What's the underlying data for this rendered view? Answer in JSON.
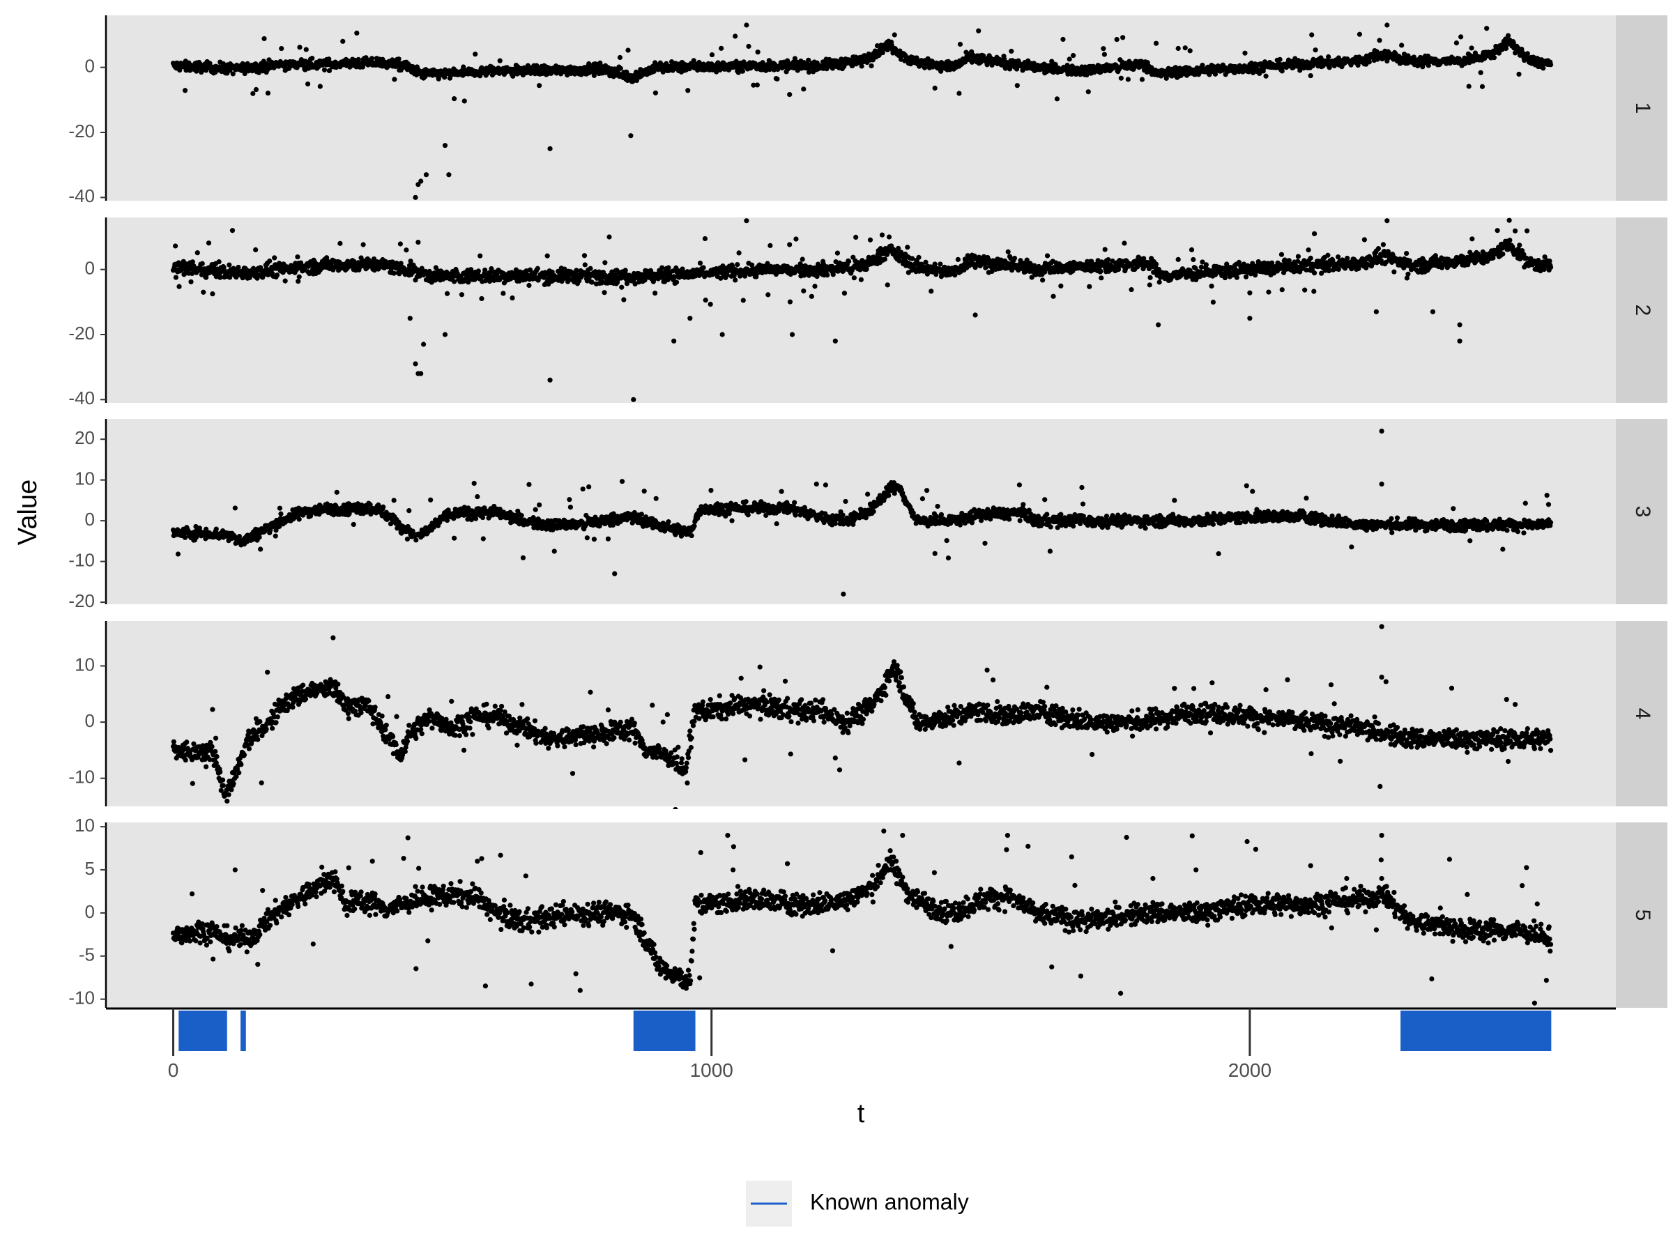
{
  "chart_data": {
    "type": "scatter",
    "facet_strip": "right",
    "x_axis": {
      "title": "t",
      "range": [
        -125,
        2680
      ],
      "ticks": [
        0,
        1000,
        2000
      ],
      "tick_labels": [
        "0",
        "1000",
        "2000"
      ]
    },
    "y_axis_title": "Value",
    "point_color": "#000000",
    "panel_background": "#e5e5e5",
    "strip_background": "#d0d0d0",
    "series_approx_length": 2560,
    "panels": [
      {
        "label": "1",
        "ylim": [
          -41,
          16
        ],
        "yticks": [
          0,
          -20,
          -40
        ],
        "ytick_labels": [
          "0",
          "-20",
          "-40"
        ],
        "noise": 1.1,
        "outlier_rate": 0.02,
        "anchors": [
          [
            0,
            0.5
          ],
          [
            120,
            -0.5
          ],
          [
            200,
            0.8
          ],
          [
            300,
            1.0
          ],
          [
            380,
            1.5
          ],
          [
            430,
            0.5
          ],
          [
            460,
            -2
          ],
          [
            520,
            -2
          ],
          [
            600,
            -1
          ],
          [
            700,
            -1
          ],
          [
            800,
            -0.5
          ],
          [
            850,
            -3
          ],
          [
            900,
            0
          ],
          [
            1000,
            0.2
          ],
          [
            1100,
            0.5
          ],
          [
            1200,
            0.5
          ],
          [
            1280,
            2
          ],
          [
            1330,
            7
          ],
          [
            1370,
            2
          ],
          [
            1450,
            0
          ],
          [
            1480,
            3
          ],
          [
            1520,
            2
          ],
          [
            1600,
            0
          ],
          [
            1700,
            -1
          ],
          [
            1800,
            1
          ],
          [
            1830,
            -2
          ],
          [
            1900,
            -1
          ],
          [
            2000,
            0
          ],
          [
            2100,
            1
          ],
          [
            2200,
            2
          ],
          [
            2250,
            4
          ],
          [
            2300,
            2
          ],
          [
            2400,
            2
          ],
          [
            2450,
            4
          ],
          [
            2480,
            8
          ],
          [
            2520,
            2
          ],
          [
            2560,
            1
          ]
        ],
        "outliers": [
          [
            315,
            8
          ],
          [
            450,
            -40
          ],
          [
            455,
            -36
          ],
          [
            460,
            -35
          ],
          [
            470,
            -33
          ],
          [
            505,
            -24
          ],
          [
            512,
            -33
          ],
          [
            700,
            -25
          ],
          [
            850,
            -21
          ],
          [
            1065,
            13
          ],
          [
            1340,
            10
          ],
          [
            1460,
            -8
          ],
          [
            1880,
            6
          ],
          [
            2115,
            10
          ],
          [
            2255,
            13
          ],
          [
            2440,
            12
          ]
        ]
      },
      {
        "label": "2",
        "ylim": [
          -41,
          16
        ],
        "yticks": [
          0,
          -20,
          -40
        ],
        "ytick_labels": [
          "0",
          "-20",
          "-40"
        ],
        "noise": 1.5,
        "outlier_rate": 0.035,
        "anchors": [
          [
            0,
            0.5
          ],
          [
            120,
            -1
          ],
          [
            200,
            0
          ],
          [
            300,
            1.5
          ],
          [
            380,
            1.5
          ],
          [
            440,
            0
          ],
          [
            480,
            -2
          ],
          [
            550,
            -2
          ],
          [
            650,
            -2
          ],
          [
            750,
            -2
          ],
          [
            850,
            -2
          ],
          [
            900,
            -2
          ],
          [
            1000,
            -1
          ],
          [
            1100,
            0
          ],
          [
            1200,
            0
          ],
          [
            1280,
            1
          ],
          [
            1330,
            6
          ],
          [
            1380,
            1
          ],
          [
            1450,
            -1
          ],
          [
            1480,
            3
          ],
          [
            1520,
            2
          ],
          [
            1600,
            0
          ],
          [
            1700,
            1
          ],
          [
            1820,
            2
          ],
          [
            1830,
            -2
          ],
          [
            1900,
            -1
          ],
          [
            2000,
            0
          ],
          [
            2100,
            1
          ],
          [
            2200,
            2
          ],
          [
            2250,
            4
          ],
          [
            2300,
            1
          ],
          [
            2400,
            3
          ],
          [
            2450,
            4
          ],
          [
            2480,
            8
          ],
          [
            2520,
            2
          ],
          [
            2560,
            1
          ]
        ],
        "outliers": [
          [
            110,
            12
          ],
          [
            310,
            8
          ],
          [
            440,
            -15
          ],
          [
            450,
            -29
          ],
          [
            455,
            -32
          ],
          [
            460,
            -32
          ],
          [
            465,
            -23
          ],
          [
            505,
            -20
          ],
          [
            700,
            -34
          ],
          [
            810,
            10
          ],
          [
            855,
            -40
          ],
          [
            930,
            -22
          ],
          [
            960,
            -15
          ],
          [
            1020,
            -20
          ],
          [
            1065,
            15
          ],
          [
            1150,
            -20
          ],
          [
            1230,
            -22
          ],
          [
            1330,
            10
          ],
          [
            1490,
            -14
          ],
          [
            1830,
            -17
          ],
          [
            2000,
            -15
          ],
          [
            2120,
            11
          ],
          [
            2235,
            -13
          ],
          [
            2255,
            15
          ],
          [
            2340,
            -13
          ],
          [
            2390,
            -22
          ],
          [
            2390,
            -17
          ],
          [
            2460,
            12
          ]
        ]
      },
      {
        "label": "3",
        "ylim": [
          -20.5,
          25
        ],
        "yticks": [
          20,
          10,
          0,
          -10,
          -20
        ],
        "ytick_labels": [
          "20",
          "10",
          "0",
          "-10",
          "-20"
        ],
        "noise": 1.0,
        "outlier_rate": 0.02,
        "anchors": [
          [
            0,
            -3
          ],
          [
            60,
            -3
          ],
          [
            100,
            -3.5
          ],
          [
            130,
            -5
          ],
          [
            160,
            -3
          ],
          [
            200,
            0
          ],
          [
            250,
            2.5
          ],
          [
            300,
            3
          ],
          [
            380,
            3
          ],
          [
            420,
            -1
          ],
          [
            450,
            -4
          ],
          [
            480,
            -2
          ],
          [
            500,
            1
          ],
          [
            540,
            2
          ],
          [
            600,
            2
          ],
          [
            650,
            0
          ],
          [
            700,
            -1
          ],
          [
            750,
            -1
          ],
          [
            800,
            0
          ],
          [
            850,
            1
          ],
          [
            900,
            -1
          ],
          [
            960,
            -3
          ],
          [
            980,
            3
          ],
          [
            1050,
            3
          ],
          [
            1100,
            3
          ],
          [
            1150,
            3
          ],
          [
            1200,
            1
          ],
          [
            1250,
            0
          ],
          [
            1300,
            3
          ],
          [
            1330,
            8
          ],
          [
            1350,
            8
          ],
          [
            1380,
            0
          ],
          [
            1450,
            0
          ],
          [
            1500,
            1.5
          ],
          [
            1580,
            2
          ],
          [
            1600,
            0
          ],
          [
            1700,
            0
          ],
          [
            1800,
            0
          ],
          [
            1900,
            0
          ],
          [
            2000,
            1
          ],
          [
            2100,
            1
          ],
          [
            2200,
            -1
          ],
          [
            2300,
            -1
          ],
          [
            2400,
            -1
          ],
          [
            2500,
            -1
          ],
          [
            2560,
            -1
          ]
        ],
        "outliers": [
          [
            820,
            -13
          ],
          [
            1195,
            9
          ],
          [
            1245,
            -18
          ],
          [
            2245,
            22
          ],
          [
            2245,
            9
          ],
          [
            2470,
            -7
          ],
          [
            2555,
            4
          ],
          [
            1860,
            5
          ],
          [
            410,
            5
          ]
        ]
      },
      {
        "label": "4",
        "ylim": [
          -15,
          18
        ],
        "yticks": [
          10,
          0,
          -10
        ],
        "ytick_labels": [
          "10",
          "0",
          "-10"
        ],
        "noise": 1.3,
        "outlier_rate": 0.015,
        "anchors": [
          [
            0,
            -5
          ],
          [
            40,
            -5.5
          ],
          [
            60,
            -6
          ],
          [
            70,
            -4
          ],
          [
            80,
            -7
          ],
          [
            95,
            -13
          ],
          [
            110,
            -11
          ],
          [
            140,
            -3
          ],
          [
            180,
            0
          ],
          [
            200,
            3
          ],
          [
            250,
            5.5
          ],
          [
            300,
            6
          ],
          [
            320,
            3
          ],
          [
            360,
            3
          ],
          [
            390,
            -1
          ],
          [
            420,
            -6
          ],
          [
            440,
            -2
          ],
          [
            480,
            1
          ],
          [
            520,
            -1
          ],
          [
            560,
            1
          ],
          [
            600,
            1
          ],
          [
            650,
            -1
          ],
          [
            700,
            -3
          ],
          [
            760,
            -2.5
          ],
          [
            800,
            -2
          ],
          [
            850,
            -1
          ],
          [
            880,
            -5
          ],
          [
            920,
            -6
          ],
          [
            950,
            -9
          ],
          [
            970,
            2
          ],
          [
            1000,
            2
          ],
          [
            1050,
            3
          ],
          [
            1100,
            3
          ],
          [
            1150,
            2
          ],
          [
            1200,
            2
          ],
          [
            1250,
            0
          ],
          [
            1300,
            3
          ],
          [
            1340,
            10
          ],
          [
            1380,
            0
          ],
          [
            1450,
            1
          ],
          [
            1500,
            2
          ],
          [
            1550,
            1
          ],
          [
            1600,
            2
          ],
          [
            1650,
            1
          ],
          [
            1700,
            0
          ],
          [
            1800,
            0
          ],
          [
            1900,
            2
          ],
          [
            2000,
            1
          ],
          [
            2100,
            0
          ],
          [
            2200,
            -1
          ],
          [
            2300,
            -3
          ],
          [
            2400,
            -3
          ],
          [
            2500,
            -3
          ],
          [
            2560,
            -3
          ]
        ],
        "outliers": [
          [
            890,
            3
          ],
          [
            1860,
            6
          ],
          [
            1930,
            7
          ],
          [
            2245,
            17
          ],
          [
            2245,
            8
          ],
          [
            2480,
            -7
          ],
          [
            540,
            -5
          ]
        ]
      },
      {
        "label": "5",
        "ylim": [
          -11,
          10.5
        ],
        "yticks": [
          10,
          5,
          0,
          -5,
          -10
        ],
        "ytick_labels": [
          "10",
          "5",
          "0",
          "-5",
          "-10"
        ],
        "noise": 0.9,
        "outlier_rate": 0.015,
        "anchors": [
          [
            0,
            -2.5
          ],
          [
            60,
            -2
          ],
          [
            100,
            -3
          ],
          [
            140,
            -3
          ],
          [
            160,
            -2
          ],
          [
            190,
            0
          ],
          [
            240,
            2
          ],
          [
            300,
            4
          ],
          [
            320,
            1
          ],
          [
            350,
            1.5
          ],
          [
            400,
            0.5
          ],
          [
            450,
            1.5
          ],
          [
            500,
            2
          ],
          [
            560,
            2
          ],
          [
            600,
            0
          ],
          [
            650,
            -1
          ],
          [
            700,
            -0.5
          ],
          [
            750,
            0
          ],
          [
            800,
            0
          ],
          [
            850,
            0
          ],
          [
            870,
            -2
          ],
          [
            900,
            -6
          ],
          [
            960,
            -8
          ],
          [
            970,
            1
          ],
          [
            1000,
            1
          ],
          [
            1050,
            1.5
          ],
          [
            1100,
            1.5
          ],
          [
            1150,
            1
          ],
          [
            1200,
            1
          ],
          [
            1250,
            1.5
          ],
          [
            1300,
            3
          ],
          [
            1330,
            6
          ],
          [
            1370,
            2
          ],
          [
            1400,
            1
          ],
          [
            1450,
            0
          ],
          [
            1500,
            1.5
          ],
          [
            1550,
            2
          ],
          [
            1600,
            0
          ],
          [
            1700,
            -1
          ],
          [
            1800,
            0
          ],
          [
            1900,
            0
          ],
          [
            2000,
            1
          ],
          [
            2100,
            1
          ],
          [
            2200,
            1.5
          ],
          [
            2250,
            2
          ],
          [
            2300,
            -1
          ],
          [
            2400,
            -2
          ],
          [
            2450,
            -2
          ],
          [
            2500,
            -2
          ],
          [
            2560,
            -3
          ]
        ],
        "outliers": [
          [
            115,
            5
          ],
          [
            370,
            6
          ],
          [
            565,
            6
          ],
          [
            980,
            7
          ],
          [
            1040,
            5
          ],
          [
            1320,
            9.5
          ],
          [
            1355,
            9
          ],
          [
            1550,
            9
          ],
          [
            1820,
            4
          ],
          [
            1900,
            5
          ],
          [
            2245,
            9
          ],
          [
            2245,
            4
          ],
          [
            2180,
            4
          ]
        ]
      }
    ],
    "anomaly_bar": {
      "legend_label": "Known anomaly",
      "color": "#1a5fc7",
      "intervals": [
        [
          10,
          100
        ],
        [
          125,
          135
        ],
        [
          855,
          970
        ],
        [
          2280,
          2560
        ]
      ]
    }
  }
}
